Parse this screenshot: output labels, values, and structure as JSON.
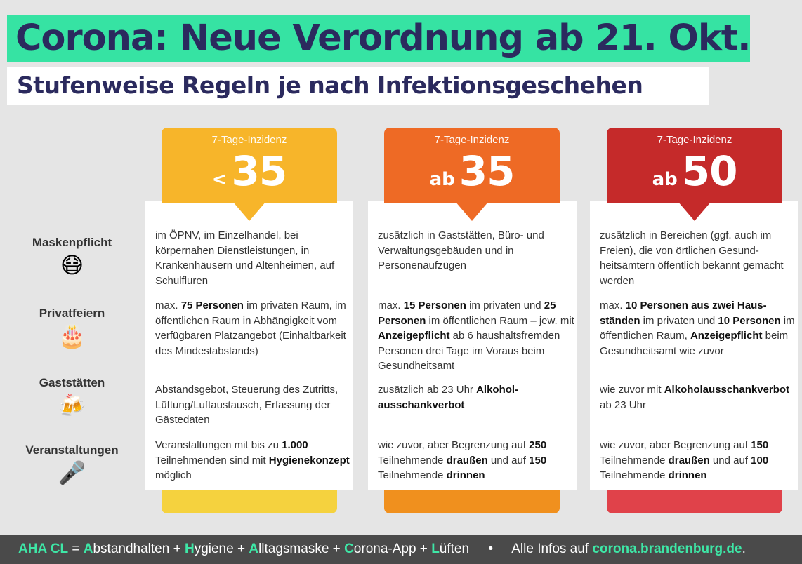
{
  "title": "Corona: Neue Verordnung ab 21. Okt.",
  "subtitle": "Stufenweise Regeln je nach Infektionsgeschehen",
  "colors": {
    "title_bg": "#36e3a3",
    "navy": "#2b2a5e",
    "yellow": "#f7b52a",
    "orange": "#ee6a25",
    "red": "#c52a2a",
    "footer_bg": "#4a4a4a",
    "footer_accent": "#3ee6a6"
  },
  "rows": [
    {
      "label": "Maskenpflicht",
      "icon": "mask-face-icon",
      "emoji": "😷"
    },
    {
      "label": "Privatfeiern",
      "icon": "birthday-cake-icon",
      "emoji": "🎂"
    },
    {
      "label": "Gaststätten",
      "icon": "beer-mugs-icon",
      "emoji": "🍻"
    },
    {
      "label": "Veranstaltungen",
      "icon": "microphone-icon",
      "emoji": "🎤"
    }
  ],
  "columns": [
    {
      "header": "7-Tage-Inzidenz",
      "prefix": "<",
      "value": "35",
      "color": "#f7b52a",
      "tab": "#f5d23e",
      "paras": [
        [
          {
            "t": "im ÖPNV, im Einzelhandel, bei körpernahen Dienstleistungen, in Krankenhäusern und Altenheimen, auf Schulfluren"
          }
        ],
        [
          {
            "t": "max. "
          },
          {
            "t": "75 Personen",
            "b": true
          },
          {
            "t": " im privaten Raum, im öffentlichen Raum in Abhängigkeit vom verfügbaren Platzangebot (Einhaltbarkeit des Mindestabstands)"
          }
        ],
        [
          {
            "t": "Abstandsgebot, Steuerung des Zutritts, Lüftung/Luftaustausch, Erfassung der Gästedaten"
          }
        ],
        [
          {
            "t": "Veranstaltungen mit bis zu "
          },
          {
            "t": "1.000",
            "b": true
          },
          {
            "t": " Teilnehmenden sind mit "
          },
          {
            "t": "Hygiene­konzept",
            "b": true
          },
          {
            "t": " möglich"
          }
        ]
      ]
    },
    {
      "header": "7-Tage-Inzidenz",
      "prefix": "ab",
      "value": "35",
      "color": "#ee6a25",
      "tab": "#f0901e",
      "paras": [
        [
          {
            "t": "zusätzlich in Gaststätten, Büro- und Verwaltungsgebäuden und in Personenaufzügen"
          }
        ],
        [
          {
            "t": "max. "
          },
          {
            "t": "15 Personen",
            "b": true
          },
          {
            "t": " im privaten und "
          },
          {
            "t": "25 Personen",
            "b": true
          },
          {
            "t": " im öffentlichen Raum – jew. mit "
          },
          {
            "t": "Anzeigepflicht",
            "b": true
          },
          {
            "t": " ab 6 haus­haltsfremden Personen drei Tage im Voraus beim Gesundheitsamt"
          }
        ],
        [
          {
            "t": "zusätzlich ab 23 Uhr "
          },
          {
            "t": "Alkohol­ausschankverbot",
            "b": true
          }
        ],
        [
          {
            "t": "wie zuvor, aber Begrenzung auf "
          },
          {
            "t": "250",
            "b": true
          },
          {
            "t": " Teilnehmende "
          },
          {
            "t": "draußen",
            "b": true
          },
          {
            "t": " und auf "
          },
          {
            "t": "150",
            "b": true
          },
          {
            "t": " Teilnehmende "
          },
          {
            "t": "drinnen",
            "b": true
          }
        ]
      ]
    },
    {
      "header": "7-Tage-Inzidenz",
      "prefix": "ab",
      "value": "50",
      "color": "#c52a2a",
      "tab": "#e0424a",
      "paras": [
        [
          {
            "t": "zusätzlich in Bereichen (ggf. auch im Freien), die von örtlichen Gesund­heitsämtern öffentlich bekannt gemacht werden"
          }
        ],
        [
          {
            "t": "max. "
          },
          {
            "t": "10 Personen aus zwei Haus­ständen",
            "b": true
          },
          {
            "t": " im privaten und "
          },
          {
            "t": "10 Per­sonen",
            "b": true
          },
          {
            "t": " im öffentlichen Raum, "
          },
          {
            "t": "Anzeigepflicht",
            "b": true
          },
          {
            "t": " beim Gesundheits­amt wie zuvor"
          }
        ],
        [
          {
            "t": "wie zuvor mit "
          },
          {
            "t": "Alkoholausschank­verbot",
            "b": true
          },
          {
            "t": " ab 23 Uhr"
          }
        ],
        [
          {
            "t": "wie zuvor, aber Begrenzung auf "
          },
          {
            "t": "150",
            "b": true
          },
          {
            "t": " Teilnehmende "
          },
          {
            "t": "draußen",
            "b": true
          },
          {
            "t": " und auf "
          },
          {
            "t": "100",
            "b": true
          },
          {
            "t": " Teilnehmende "
          },
          {
            "t": "drinnen",
            "b": true
          }
        ]
      ]
    }
  ],
  "footer": {
    "aha": "AHA CL",
    "eq": " = ",
    "terms": [
      {
        "l": "A",
        "r": "bstandhalten"
      },
      {
        "l": "H",
        "r": "ygiene"
      },
      {
        "l": "A",
        "r": "lltagsmaske"
      },
      {
        "l": "C",
        "r": "orona-App"
      },
      {
        "l": "L",
        "r": "üften"
      }
    ],
    "plus": " + ",
    "bullet": "•",
    "info": "Alle Infos auf ",
    "link": "corona.brandenburg.de",
    "dot": "."
  }
}
